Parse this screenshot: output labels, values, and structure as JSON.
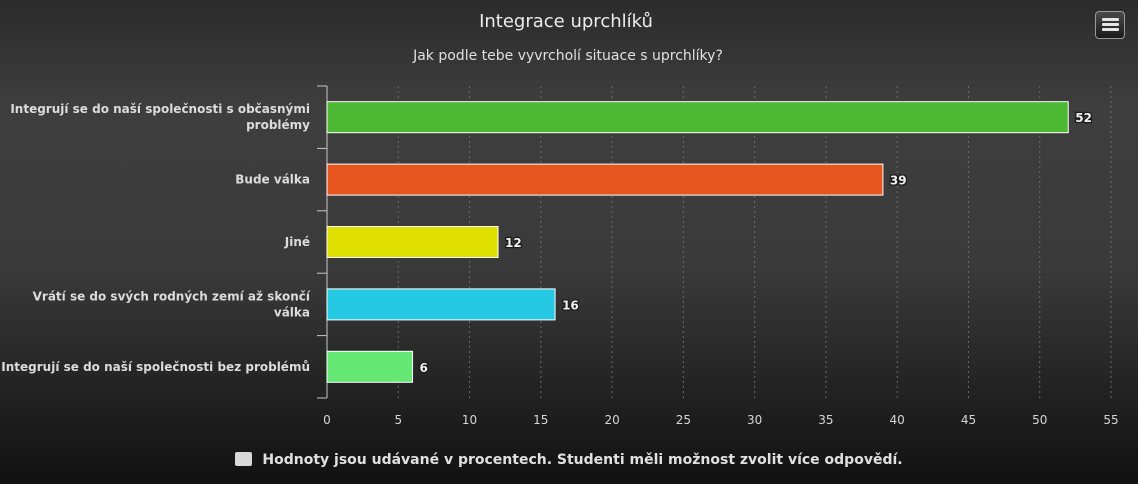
{
  "chart_data": {
    "type": "bar",
    "orientation": "horizontal",
    "title": "Integrace uprchlíků",
    "subtitle": "Jak podle tebe vyvrcholí situace s uprchlíky?",
    "categories": [
      "Integrují se do naší společnosti s občasnými problémy",
      "Bude válka",
      "Jiné",
      "Vrátí se do svých rodných zemí až skončí válka",
      "Integrují se do naší společnosti bez problémů"
    ],
    "values": [
      52,
      39,
      12,
      16,
      6
    ],
    "colors": [
      "#4db833",
      "#e85620",
      "#dfe000",
      "#25c9e3",
      "#64e873"
    ],
    "data_labels": [
      "52",
      "39",
      "12",
      "16",
      "6"
    ],
    "xlim": [
      0,
      55
    ],
    "x_ticks": [
      0,
      5,
      10,
      15,
      20,
      25,
      30,
      35,
      40,
      45,
      50,
      55
    ],
    "x_tick_labels": [
      "0",
      "5",
      "10",
      "15",
      "20",
      "25",
      "30",
      "35",
      "40",
      "45",
      "50",
      "55"
    ],
    "grid": true,
    "legend": {
      "placement": "bottom",
      "label": "Hodnoty jsou udávané v procentech. Studenti měli možnost zvolit více odpovědí.",
      "swatch_color": "#d8d8d8"
    }
  },
  "menu": {
    "icon": "menu-icon"
  }
}
